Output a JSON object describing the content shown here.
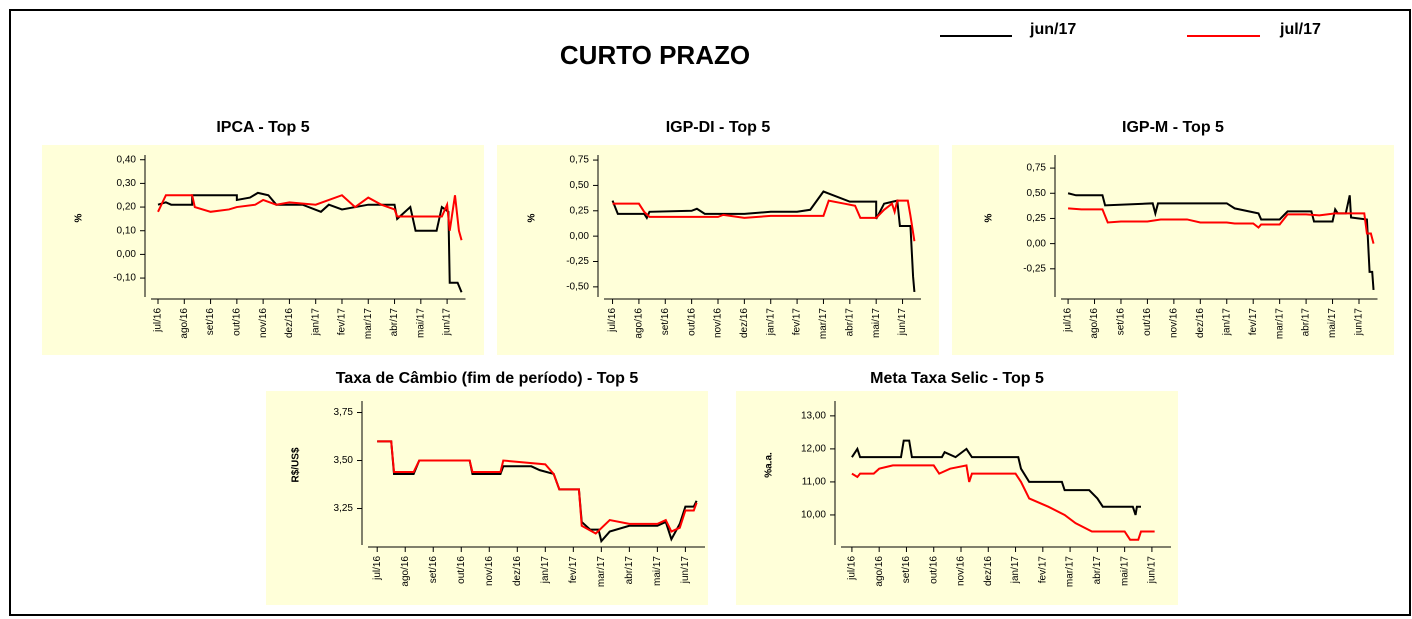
{
  "title": "CURTO PRAZO",
  "chart_data": [
    {
      "type": "line",
      "title": "IPCA - Top 5",
      "ylabel": "%",
      "xlim": [
        -0.4,
        11.7
      ],
      "ylim": [
        -0.18,
        0.42
      ],
      "xticks": [
        {
          "value": 0,
          "label": "jul/16"
        },
        {
          "value": 1,
          "label": "ago/16"
        },
        {
          "value": 2,
          "label": "set/16"
        },
        {
          "value": 3,
          "label": "out/16"
        },
        {
          "value": 4,
          "label": "nov/16"
        },
        {
          "value": 5,
          "label": "dez/16"
        },
        {
          "value": 6,
          "label": "jan/17"
        },
        {
          "value": 7,
          "label": "fev/17"
        },
        {
          "value": 8,
          "label": "mar/17"
        },
        {
          "value": 9,
          "label": "abr/17"
        },
        {
          "value": 10,
          "label": "mai/17"
        },
        {
          "value": 11,
          "label": "jun/17"
        }
      ],
      "yticks": [
        {
          "value": -0.1,
          "label": "-0,10"
        },
        {
          "value": 0,
          "label": "0,00"
        },
        {
          "value": 0.1,
          "label": "0,10"
        },
        {
          "value": 0.2,
          "label": "0,20"
        },
        {
          "value": 0.3,
          "label": "0,30"
        },
        {
          "value": 0.4,
          "label": "0,40"
        }
      ],
      "series": [
        {
          "name": "jun/17",
          "color": "#000000",
          "x": [
            0,
            0.3,
            0.5,
            1.3,
            1.3,
            3,
            3,
            3.5,
            3.8,
            4.2,
            4.5,
            5.5,
            6.2,
            6.5,
            7,
            8,
            9,
            9.1,
            9.6,
            9.8,
            10.6,
            10.8,
            11.05,
            11.1,
            11.4,
            11.55
          ],
          "values": [
            0.21,
            0.22,
            0.21,
            0.21,
            0.25,
            0.25,
            0.23,
            0.24,
            0.26,
            0.25,
            0.21,
            0.21,
            0.18,
            0.21,
            0.19,
            0.21,
            0.21,
            0.15,
            0.2,
            0.1,
            0.1,
            0.2,
            0.18,
            -0.12,
            -0.12,
            -0.16
          ]
        },
        {
          "name": "jul/17",
          "color": "#ff0000",
          "x": [
            0,
            0.3,
            1.3,
            1.4,
            2,
            2.7,
            3,
            3.7,
            4,
            4.5,
            5,
            6,
            7,
            7.5,
            8,
            8.5,
            9,
            9.1,
            10.8,
            11,
            11.1,
            11.3,
            11.45,
            11.55
          ],
          "values": [
            0.18,
            0.25,
            0.25,
            0.2,
            0.18,
            0.19,
            0.2,
            0.21,
            0.23,
            0.21,
            0.22,
            0.21,
            0.25,
            0.2,
            0.24,
            0.21,
            0.19,
            0.16,
            0.16,
            0.21,
            0.1,
            0.25,
            0.1,
            0.06
          ]
        }
      ]
    },
    {
      "type": "line",
      "title": "IGP-DI - Top 5",
      "ylabel": "%",
      "xlim": [
        -0.4,
        11.7
      ],
      "ylim": [
        -0.6,
        0.8
      ],
      "xticks": [
        {
          "value": 0,
          "label": "jul/16"
        },
        {
          "value": 1,
          "label": "ago/16"
        },
        {
          "value": 2,
          "label": "set/16"
        },
        {
          "value": 3,
          "label": "out/16"
        },
        {
          "value": 4,
          "label": "nov/16"
        },
        {
          "value": 5,
          "label": "dez/16"
        },
        {
          "value": 6,
          "label": "jan/17"
        },
        {
          "value": 7,
          "label": "fev/17"
        },
        {
          "value": 8,
          "label": "mar/17"
        },
        {
          "value": 9,
          "label": "abr/17"
        },
        {
          "value": 10,
          "label": "mai/17"
        },
        {
          "value": 11,
          "label": "jun/17"
        }
      ],
      "yticks": [
        {
          "value": -0.5,
          "label": "-0,50"
        },
        {
          "value": -0.25,
          "label": "-0,25"
        },
        {
          "value": 0,
          "label": "0,00"
        },
        {
          "value": 0.25,
          "label": "0,25"
        },
        {
          "value": 0.5,
          "label": "0,50"
        },
        {
          "value": 0.75,
          "label": "0,75"
        }
      ],
      "series": [
        {
          "name": "jun/17",
          "color": "#000000",
          "x": [
            0,
            0.2,
            1.2,
            1.3,
            1.4,
            3,
            3.2,
            3.5,
            5,
            6,
            7,
            7.5,
            8,
            8.2,
            9,
            10,
            10,
            10.3,
            10.8,
            10.9,
            11.3,
            11.4,
            11.45
          ],
          "values": [
            0.35,
            0.22,
            0.22,
            0.18,
            0.24,
            0.25,
            0.27,
            0.22,
            0.22,
            0.24,
            0.24,
            0.26,
            0.44,
            0.42,
            0.34,
            0.34,
            0.17,
            0.32,
            0.35,
            0.1,
            0.1,
            -0.4,
            -0.55
          ]
        },
        {
          "name": "jul/17",
          "color": "#ff0000",
          "x": [
            0,
            1,
            1.2,
            1.4,
            4,
            4.2,
            5,
            6,
            8,
            8.2,
            8.8,
            9.2,
            9.4,
            10,
            10.3,
            10.6,
            10.7,
            10.8,
            11.2,
            11.3,
            11.45
          ],
          "values": [
            0.32,
            0.32,
            0.24,
            0.19,
            0.19,
            0.21,
            0.18,
            0.2,
            0.2,
            0.35,
            0.32,
            0.3,
            0.18,
            0.18,
            0.26,
            0.32,
            0.24,
            0.35,
            0.35,
            0.2,
            -0.05
          ]
        }
      ]
    },
    {
      "type": "line",
      "title": "IGP-M - Top 5",
      "ylabel": "%",
      "xlim": [
        -0.4,
        11.7
      ],
      "ylim": [
        -0.53,
        0.88
      ],
      "xticks": [
        {
          "value": 0,
          "label": "jul/16"
        },
        {
          "value": 1,
          "label": "ago/16"
        },
        {
          "value": 2,
          "label": "set/16"
        },
        {
          "value": 3,
          "label": "out/16"
        },
        {
          "value": 4,
          "label": "nov/16"
        },
        {
          "value": 5,
          "label": "dez/16"
        },
        {
          "value": 6,
          "label": "jan/17"
        },
        {
          "value": 7,
          "label": "fev/17"
        },
        {
          "value": 8,
          "label": "mar/17"
        },
        {
          "value": 9,
          "label": "abr/17"
        },
        {
          "value": 10,
          "label": "mai/17"
        },
        {
          "value": 11,
          "label": "jun/17"
        }
      ],
      "yticks": [
        {
          "value": -0.25,
          "label": "-0,25"
        },
        {
          "value": 0,
          "label": "0,00"
        },
        {
          "value": 0.25,
          "label": "0,25"
        },
        {
          "value": 0.5,
          "label": "0,50"
        },
        {
          "value": 0.75,
          "label": "0,75"
        }
      ],
      "series": [
        {
          "name": "jun/17",
          "color": "#000000",
          "x": [
            0,
            0.3,
            1.3,
            1.4,
            3.2,
            3.3,
            3.4,
            6,
            6.3,
            7.2,
            7.3,
            8,
            8.3,
            9.2,
            9.3,
            10,
            10.1,
            10.2,
            10.5,
            10.65,
            10.7,
            11.3,
            11.4,
            11.5,
            11.55
          ],
          "values": [
            0.5,
            0.48,
            0.48,
            0.38,
            0.4,
            0.3,
            0.4,
            0.4,
            0.35,
            0.3,
            0.24,
            0.24,
            0.32,
            0.32,
            0.22,
            0.22,
            0.34,
            0.3,
            0.3,
            0.48,
            0.26,
            0.24,
            -0.28,
            -0.28,
            -0.46
          ]
        },
        {
          "name": "jul/17",
          "color": "#ff0000",
          "x": [
            0,
            0.5,
            1.3,
            1.5,
            2,
            3,
            3.5,
            4.5,
            5,
            6,
            6.3,
            7,
            7.2,
            7.3,
            8,
            8.3,
            9,
            9.5,
            10.1,
            11.2,
            11.3,
            11.45,
            11.55
          ],
          "values": [
            0.35,
            0.34,
            0.34,
            0.21,
            0.22,
            0.22,
            0.24,
            0.24,
            0.21,
            0.21,
            0.2,
            0.2,
            0.16,
            0.19,
            0.19,
            0.29,
            0.29,
            0.28,
            0.3,
            0.3,
            0.1,
            0.1,
            0
          ]
        }
      ]
    },
    {
      "type": "line",
      "title": "Taxa de Câmbio (fim de período) - Top 5",
      "ylabel": "R$/US$",
      "xlim": [
        -0.4,
        11.7
      ],
      "ylim": [
        3.06,
        3.81
      ],
      "xticks": [
        {
          "value": 0,
          "label": "jul/16"
        },
        {
          "value": 1,
          "label": "ago/16"
        },
        {
          "value": 2,
          "label": "set/16"
        },
        {
          "value": 3,
          "label": "out/16"
        },
        {
          "value": 4,
          "label": "nov/16"
        },
        {
          "value": 5,
          "label": "dez/16"
        },
        {
          "value": 6,
          "label": "jan/17"
        },
        {
          "value": 7,
          "label": "fev/17"
        },
        {
          "value": 8,
          "label": "mar/17"
        },
        {
          "value": 9,
          "label": "abr/17"
        },
        {
          "value": 10,
          "label": "mai/17"
        },
        {
          "value": 11,
          "label": "jun/17"
        }
      ],
      "yticks": [
        {
          "value": 3.25,
          "label": "3,25"
        },
        {
          "value": 3.5,
          "label": "3,50"
        },
        {
          "value": 3.75,
          "label": "3,75"
        }
      ],
      "series": [
        {
          "name": "jun/17",
          "color": "#000000",
          "x": [
            0,
            0.5,
            0.6,
            1.3,
            1.5,
            3.3,
            3.4,
            4.4,
            4.5,
            5.5,
            5.8,
            6.3,
            6.5,
            7.2,
            7.3,
            7.6,
            7.9,
            8,
            8.3,
            9,
            10,
            10.3,
            10.5,
            10.8,
            11,
            11.3,
            11.4
          ],
          "values": [
            3.6,
            3.6,
            3.43,
            3.43,
            3.5,
            3.5,
            3.43,
            3.43,
            3.47,
            3.47,
            3.45,
            3.43,
            3.35,
            3.35,
            3.18,
            3.14,
            3.14,
            3.08,
            3.13,
            3.16,
            3.16,
            3.18,
            3.09,
            3.17,
            3.26,
            3.26,
            3.29
          ]
        },
        {
          "name": "jul/17",
          "color": "#ff0000",
          "x": [
            0,
            0.5,
            0.6,
            1.3,
            1.5,
            3.3,
            3.4,
            4.4,
            4.5,
            6,
            6.3,
            6.5,
            7.2,
            7.3,
            7.8,
            8.3,
            9,
            10,
            10.3,
            10.5,
            10.8,
            11,
            11.3,
            11.4
          ],
          "values": [
            3.6,
            3.6,
            3.44,
            3.44,
            3.5,
            3.5,
            3.44,
            3.44,
            3.5,
            3.48,
            3.43,
            3.35,
            3.35,
            3.16,
            3.12,
            3.19,
            3.17,
            3.17,
            3.19,
            3.13,
            3.15,
            3.24,
            3.24,
            3.28
          ]
        }
      ]
    },
    {
      "type": "line",
      "title": "Meta Taxa Selic - Top 5",
      "ylabel": "%a.a.",
      "xlim": [
        -0.4,
        11.7
      ],
      "ylim": [
        9.09,
        13.45
      ],
      "xticks": [
        {
          "value": 0,
          "label": "jul/16"
        },
        {
          "value": 1,
          "label": "ago/16"
        },
        {
          "value": 2,
          "label": "set/16"
        },
        {
          "value": 3,
          "label": "out/16"
        },
        {
          "value": 4,
          "label": "nov/16"
        },
        {
          "value": 5,
          "label": "dez/16"
        },
        {
          "value": 6,
          "label": "jan/17"
        },
        {
          "value": 7,
          "label": "fev/17"
        },
        {
          "value": 8,
          "label": "mar/17"
        },
        {
          "value": 9,
          "label": "abr/17"
        },
        {
          "value": 10,
          "label": "mai/17"
        },
        {
          "value": 11,
          "label": "jun/17"
        }
      ],
      "yticks": [
        {
          "value": 10,
          "label": "10,00"
        },
        {
          "value": 11,
          "label": "11,00"
        },
        {
          "value": 12,
          "label": "12,00"
        },
        {
          "value": 13,
          "label": "13,00"
        }
      ],
      "series": [
        {
          "name": "jun/17",
          "color": "#000000",
          "x": [
            0,
            0.2,
            0.3,
            1.8,
            1.9,
            2.1,
            2.2,
            3.3,
            3.4,
            3.8,
            4.2,
            4.4,
            6.1,
            6.2,
            6.5,
            7.7,
            7.8,
            8.7,
            9,
            9.2,
            10.3,
            10.4,
            10.45,
            10.6
          ],
          "values": [
            11.75,
            12,
            11.75,
            11.75,
            12.25,
            12.25,
            11.75,
            11.75,
            11.9,
            11.75,
            12,
            11.75,
            11.75,
            11.4,
            11,
            11,
            10.75,
            10.75,
            10.5,
            10.25,
            10.25,
            10,
            10.25,
            10.25
          ]
        },
        {
          "name": "jul/17",
          "color": "#ff0000",
          "x": [
            0,
            0.2,
            0.3,
            0.8,
            1,
            1.5,
            3,
            3.2,
            3.6,
            4.2,
            4.3,
            4.4,
            6,
            6.2,
            6.5,
            7.2,
            7.8,
            8.2,
            8.8,
            10,
            10.2,
            10.5,
            10.6,
            11.1
          ],
          "values": [
            11.25,
            11.15,
            11.25,
            11.25,
            11.4,
            11.5,
            11.5,
            11.25,
            11.4,
            11.5,
            11,
            11.25,
            11.25,
            11,
            10.5,
            10.25,
            10,
            9.75,
            9.5,
            9.5,
            9.25,
            9.25,
            9.5,
            9.5
          ]
        }
      ]
    }
  ]
}
